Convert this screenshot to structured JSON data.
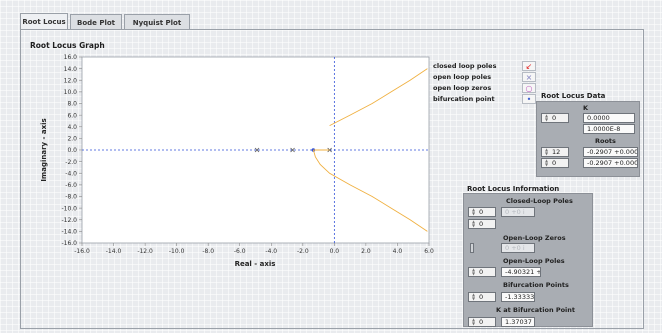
{
  "tabs": [
    "Root Locus",
    "Bode Plot",
    "Nyquist Plot"
  ],
  "graph": {
    "title": "Root Locus Graph",
    "xlabel": "Real - axis",
    "ylabel": "Imaginary - axis"
  },
  "chart_data": {
    "type": "scatter",
    "title": "Root Locus Graph",
    "xlabel": "Real - axis",
    "ylabel": "Imaginary - axis",
    "xlim": [
      -16,
      6
    ],
    "ylim": [
      -16,
      16
    ],
    "x_ticks": [
      "-16.0",
      "-14.0",
      "-12.0",
      "-10.0",
      "-8.0",
      "-6.0",
      "-4.0",
      "-2.0",
      "0.0",
      "2.0",
      "4.0",
      "6.0"
    ],
    "y_ticks": [
      "16.0",
      "14.0",
      "12.0",
      "10.0",
      "8.0",
      "6.0",
      "4.0",
      "2.0",
      "0.0",
      "-2.0",
      "-4.0",
      "-6.0",
      "-8.0",
      "-10.0",
      "-12.0",
      "-14.0",
      "-16.0"
    ],
    "grid": false,
    "legend_position": "right",
    "series": [
      {
        "name": "open loop poles",
        "marker": "x",
        "points": [
          [
            -4.90321,
            0
          ],
          [
            -2.65,
            0
          ],
          [
            -0.3,
            0
          ]
        ]
      },
      {
        "name": "bifurcation point",
        "marker": "dot",
        "points": [
          [
            -1.33333,
            0
          ]
        ]
      },
      {
        "name": "",
        "style": "locus",
        "points": [
          [
            -1.33,
            0
          ],
          [
            -1.2,
            -1.2
          ],
          [
            -0.9,
            -2.5
          ],
          [
            -0.3,
            -4.0
          ],
          [
            1.0,
            -6.0
          ],
          [
            2.4,
            -8.0
          ],
          [
            3.6,
            -10.0
          ],
          [
            4.8,
            -12.0
          ],
          [
            5.9,
            -14.0
          ]
        ]
      },
      {
        "name": "",
        "style": "locus",
        "points": [
          [
            -0.3,
            4.2
          ],
          [
            1.0,
            6.0
          ],
          [
            2.4,
            8.0
          ],
          [
            3.6,
            10.0
          ],
          [
            4.8,
            12.0
          ],
          [
            5.9,
            14.0
          ]
        ]
      },
      {
        "name": "",
        "style": "locus",
        "points": [
          [
            -1.33,
            0
          ],
          [
            -0.3,
            0
          ]
        ]
      }
    ],
    "asymptote_x": 0.0,
    "colors": {
      "locus": "#f0b040",
      "axis_dash": "#3050d8"
    }
  },
  "legend": [
    {
      "label": "closed loop poles",
      "icon": "red-arrow-marker-icon",
      "color": "#e02020"
    },
    {
      "label": "open loop poles",
      "icon": "x-marker-icon",
      "color": "#8080c0"
    },
    {
      "label": "open loop zeros",
      "icon": "circle-marker-icon",
      "color": "#c060c0"
    },
    {
      "label": "bifurcation point",
      "icon": "dot-marker-icon",
      "color": "#4060d0"
    }
  ],
  "root_locus_data": {
    "title": "Root Locus Data",
    "k_label": "K",
    "roots_label": "Roots",
    "index_k": "0",
    "k_values": [
      "0.0000",
      "1.0000E-8"
    ],
    "index_roots_a": "12",
    "index_roots_b": "0",
    "roots": [
      "-0.2907 +0.0000 i",
      "-0.2907 +0.0000 i"
    ]
  },
  "root_locus_info": {
    "title": "Root Locus Information",
    "closed_loop_label": "Closed-Loop Poles",
    "closed_loop_index_a": "0",
    "closed_loop_index_b": "0",
    "closed_loop_value": "0 +0 i",
    "open_loop_zeros_label": "Open-Loop Zeros",
    "open_loop_zeros_value": "0 +0 i",
    "open_loop_poles_label": "Open-Loop Poles",
    "open_loop_poles_index": "0",
    "open_loop_poles_value": "-4.90321 +",
    "bifurcation_label": "Bifurcation Points",
    "bifurcation_index": "0",
    "bifurcation_value": "-1.33333",
    "k_bifurcation_label": "K at Bifurcation Point",
    "k_bifurcation_index": "0",
    "k_bifurcation_value": "1.37037"
  }
}
